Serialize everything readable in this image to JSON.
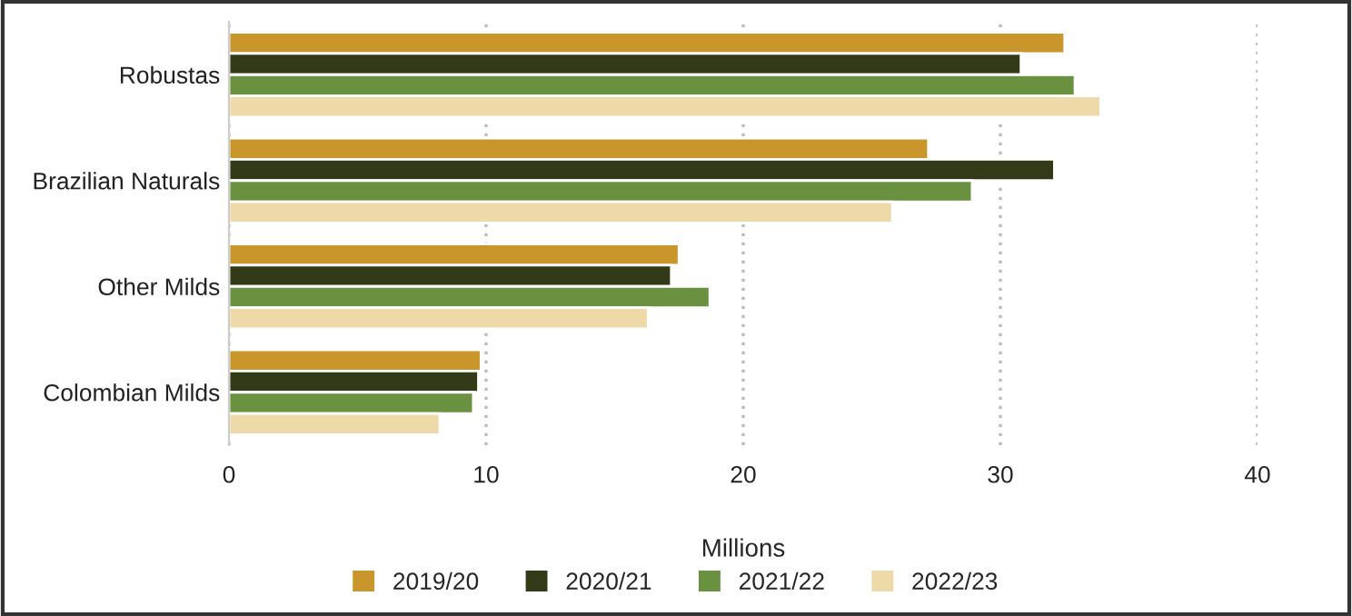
{
  "chart_data": {
    "type": "bar",
    "orientation": "horizontal",
    "xlabel": "Millions",
    "categories": [
      "Robustas",
      "Brazilian Naturals",
      "Other Milds",
      "Colombian Milds"
    ],
    "series": [
      {
        "name": "2019/20",
        "color": "#c9962b",
        "values": [
          32.5,
          27.2,
          17.5,
          9.8
        ]
      },
      {
        "name": "2020/21",
        "color": "#333a17",
        "values": [
          30.8,
          32.1,
          17.2,
          9.7
        ]
      },
      {
        "name": "2021/22",
        "color": "#6a9140",
        "values": [
          32.9,
          28.9,
          18.7,
          9.5
        ]
      },
      {
        "name": "2022/23",
        "color": "#eed9a8",
        "values": [
          33.9,
          25.8,
          16.3,
          8.2
        ]
      }
    ],
    "xlim": [
      0,
      40
    ],
    "xticks": [
      0,
      10,
      20,
      30,
      40
    ],
    "grid": "x",
    "legend": "bottom"
  }
}
